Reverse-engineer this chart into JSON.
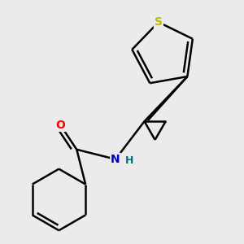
{
  "background_color": "#ebebeb",
  "atom_colors": {
    "S": "#b8b800",
    "O": "#ff0000",
    "N": "#0000cc",
    "H": "#007070",
    "C": "#000000"
  },
  "bond_color": "#000000",
  "bond_width": 1.8
}
